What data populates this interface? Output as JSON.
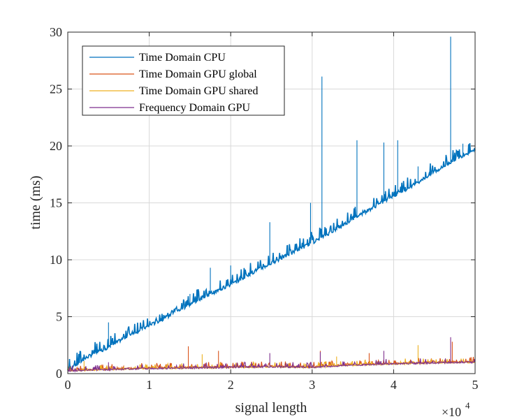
{
  "chart_data": {
    "type": "line",
    "title": "",
    "xlabel": "signal length",
    "ylabel": "time (ms)",
    "xlim": [
      0,
      50000
    ],
    "ylim": [
      0,
      30
    ],
    "x_ticks": [
      0,
      10000,
      20000,
      30000,
      40000,
      50000
    ],
    "x_tick_labels": [
      "0",
      "1",
      "2",
      "3",
      "4",
      "5"
    ],
    "x_exponent_base": "×10",
    "x_exponent_power": "4",
    "y_ticks": [
      0,
      5,
      10,
      15,
      20,
      25,
      30
    ],
    "y_tick_labels": [
      "0",
      "5",
      "10",
      "15",
      "20",
      "25",
      "30"
    ],
    "grid": true,
    "legend_position": "top-left",
    "series": [
      {
        "name": "Time Domain CPU",
        "color": "#0072BD",
        "x": [
          0,
          2500,
          5000,
          7500,
          10000,
          12500,
          15000,
          17500,
          20000,
          22500,
          25000,
          27500,
          30000,
          32500,
          35000,
          37500,
          40000,
          42500,
          45000,
          47500,
          50000
        ],
        "values": [
          0.3,
          1.5,
          2.3,
          3.4,
          4.2,
          5.1,
          6.1,
          7.0,
          7.8,
          8.8,
          9.7,
          10.6,
          11.5,
          12.5,
          13.6,
          14.6,
          15.6,
          16.6,
          17.7,
          18.8,
          19.7
        ],
        "spikes": [
          {
            "x": 5000,
            "y": 4.5
          },
          {
            "x": 15000,
            "y": 7.0
          },
          {
            "x": 17500,
            "y": 9.3
          },
          {
            "x": 20000,
            "y": 9.5
          },
          {
            "x": 24800,
            "y": 13.3
          },
          {
            "x": 27000,
            "y": 11.3
          },
          {
            "x": 29800,
            "y": 15.0
          },
          {
            "x": 31200,
            "y": 26.1
          },
          {
            "x": 35500,
            "y": 20.5
          },
          {
            "x": 38800,
            "y": 20.3
          },
          {
            "x": 40500,
            "y": 20.5
          },
          {
            "x": 43000,
            "y": 18.2
          },
          {
            "x": 47000,
            "y": 29.6
          },
          {
            "x": 48500,
            "y": 20.2
          }
        ]
      },
      {
        "name": "Time Domain GPU global",
        "color": "#D95319",
        "x": [
          0,
          10000,
          20000,
          25000,
          30000,
          35000,
          40000,
          45000,
          50000
        ],
        "values": [
          0.3,
          0.5,
          0.6,
          0.65,
          0.6,
          0.8,
          0.9,
          1.0,
          1.05
        ],
        "spikes": [
          {
            "x": 14800,
            "y": 2.4
          },
          {
            "x": 18500,
            "y": 2.0
          },
          {
            "x": 31000,
            "y": 2.0
          },
          {
            "x": 37000,
            "y": 1.8
          },
          {
            "x": 47200,
            "y": 2.8
          }
        ]
      },
      {
        "name": "Time Domain GPU shared",
        "color": "#EDB120",
        "x": [
          0,
          10000,
          20000,
          25000,
          30000,
          35000,
          40000,
          45000,
          50000
        ],
        "values": [
          0.25,
          0.45,
          0.55,
          0.6,
          0.55,
          0.75,
          0.85,
          0.95,
          1.0
        ],
        "spikes": [
          {
            "x": 2000,
            "y": 1.1
          },
          {
            "x": 16500,
            "y": 1.7
          },
          {
            "x": 33000,
            "y": 1.5
          },
          {
            "x": 43000,
            "y": 2.5
          }
        ]
      },
      {
        "name": "Frequency Domain  GPU",
        "color": "#7E2F8E",
        "x": [
          0,
          10000,
          20000,
          25000,
          30000,
          35000,
          40000,
          45000,
          50000
        ],
        "values": [
          0.25,
          0.45,
          0.55,
          0.6,
          0.55,
          0.75,
          0.85,
          0.95,
          1.0
        ],
        "spikes": [
          {
            "x": 5000,
            "y": 1.0
          },
          {
            "x": 24800,
            "y": 1.8
          },
          {
            "x": 31000,
            "y": 1.9
          },
          {
            "x": 38800,
            "y": 2.0
          },
          {
            "x": 47000,
            "y": 3.2
          }
        ]
      }
    ]
  }
}
